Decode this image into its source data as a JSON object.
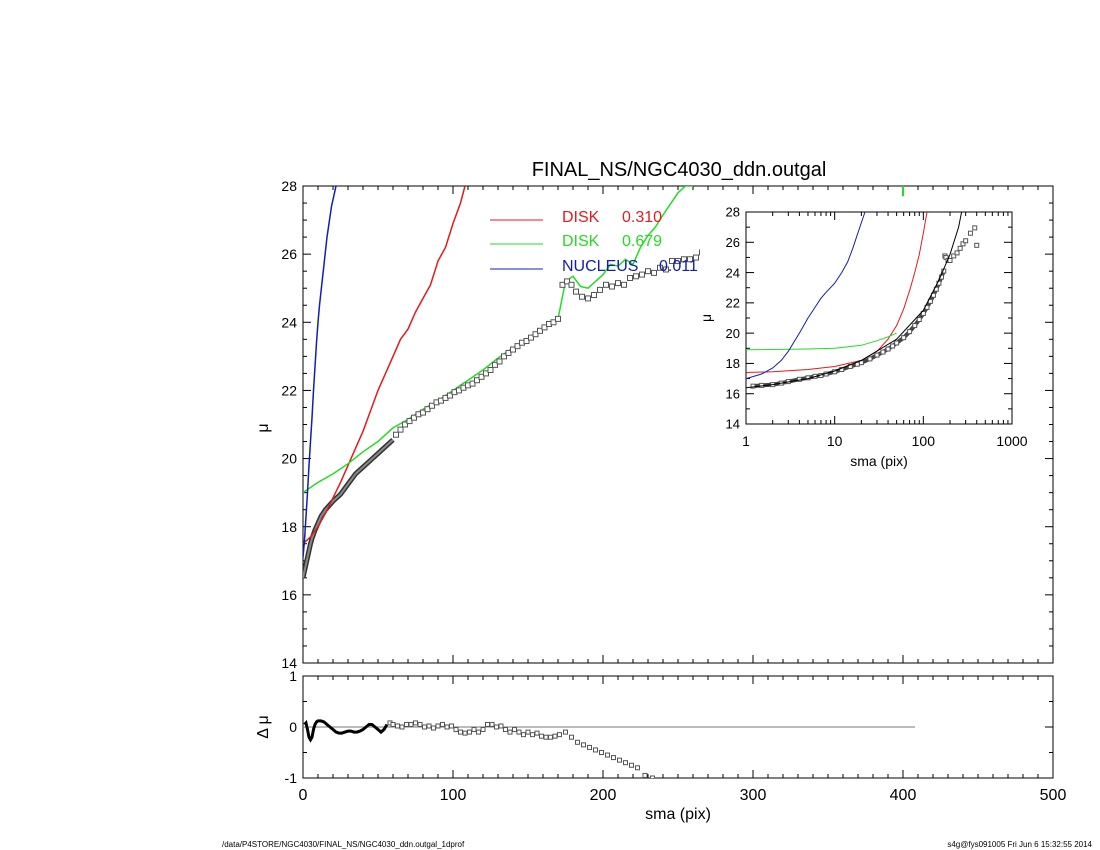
{
  "chart_data": [
    {
      "type": "scatter",
      "title": "FINAL_NS/NGC4030_ddn.outgal",
      "xlabel": "",
      "ylabel": "μ",
      "xlim": [
        0,
        500
      ],
      "ylim": [
        28,
        14
      ],
      "y_reversed": true,
      "yticks": [
        "14",
        "16",
        "18",
        "20",
        "22",
        "24",
        "26",
        "28"
      ],
      "legend": [
        {
          "name": "DISK",
          "value": "0.310",
          "color": "#e41a1c"
        },
        {
          "name": "DISK",
          "value": "0.679",
          "color": "#22dd22"
        },
        {
          "name": "NUCLEUS",
          "value": "0.011",
          "color": "#1020b0"
        }
      ],
      "observed": {
        "x": [
          62,
          65,
          68,
          71,
          74,
          77,
          80,
          83,
          86,
          89,
          92,
          95,
          98,
          101,
          104,
          107,
          110,
          113,
          116,
          119,
          122,
          125,
          128,
          131,
          134,
          137,
          140,
          143,
          146,
          149,
          152,
          155,
          158,
          161,
          164,
          167,
          170,
          173,
          176,
          179,
          182,
          186,
          190,
          194,
          198,
          202,
          206,
          210,
          214,
          218,
          222,
          226,
          230,
          234,
          238,
          242,
          246,
          250,
          254,
          258,
          262,
          266,
          270,
          274,
          278,
          282,
          286,
          290,
          295,
          300,
          305,
          310,
          315,
          320,
          325,
          330,
          335,
          340,
          345,
          350,
          355,
          360,
          365,
          370,
          375,
          380,
          385,
          390,
          400,
          408
        ],
        "y": [
          20.7,
          20.85,
          21.0,
          21.1,
          21.2,
          21.3,
          21.35,
          21.45,
          21.55,
          21.65,
          21.7,
          21.78,
          21.85,
          21.95,
          22.0,
          22.08,
          22.15,
          22.2,
          22.3,
          22.4,
          22.5,
          22.6,
          22.75,
          22.85,
          23.0,
          23.1,
          23.2,
          23.3,
          23.4,
          23.45,
          23.55,
          23.65,
          23.75,
          23.85,
          23.95,
          24.0,
          24.1,
          25.1,
          25.2,
          25.1,
          24.9,
          24.75,
          24.7,
          24.8,
          24.95,
          25.1,
          25.05,
          25.15,
          25.1,
          25.3,
          25.35,
          25.4,
          25.5,
          25.45,
          25.6,
          25.55,
          25.8,
          25.8,
          25.85,
          25.85,
          25.9,
          26.05,
          26.1,
          26.05,
          26.0,
          26.2,
          26.45,
          26.3,
          26.7,
          26.6,
          26.45,
          26.6,
          26.45,
          26.6,
          26.4,
          26.55,
          26.45,
          26.5,
          26.9,
          26.55,
          26.6,
          27.0,
          26.55,
          26.95,
          26.6,
          26.7,
          26.55,
          27.0,
          25.75,
          26.75
        ]
      },
      "model_total": {
        "x": [
          0,
          1,
          2,
          3,
          4,
          5,
          6,
          8,
          10,
          12,
          15,
          18,
          20,
          25,
          30,
          35,
          40,
          45,
          50,
          55,
          60
        ],
        "y": [
          16.5,
          16.7,
          16.9,
          17.1,
          17.3,
          17.5,
          17.65,
          17.9,
          18.1,
          18.3,
          18.5,
          18.65,
          18.75,
          18.95,
          19.25,
          19.55,
          19.75,
          19.95,
          20.15,
          20.35,
          20.55
        ]
      },
      "disk1": {
        "x": [
          0,
          5,
          10,
          15,
          20,
          25,
          30,
          35,
          40,
          45,
          50,
          55,
          60,
          65,
          70,
          75,
          80,
          85,
          90,
          95,
          100,
          105,
          108
        ],
        "y": [
          17.5,
          17.7,
          18.0,
          18.4,
          18.85,
          19.3,
          19.8,
          20.3,
          20.8,
          21.4,
          22.0,
          22.5,
          23.0,
          23.5,
          23.8,
          24.3,
          24.7,
          25.1,
          25.8,
          26.2,
          26.9,
          27.5,
          28.0
        ]
      },
      "disk2": {
        "x": [
          0,
          10,
          20,
          30,
          40,
          50,
          60,
          70,
          80,
          90,
          100,
          110,
          120,
          130,
          140,
          150,
          160,
          170,
          175,
          180,
          185,
          190,
          195,
          200,
          205,
          210,
          215,
          220,
          225,
          230,
          235,
          240,
          250,
          255,
          260
        ],
        "y": [
          19.0,
          19.3,
          19.55,
          19.85,
          20.2,
          20.5,
          20.9,
          21.15,
          21.45,
          21.7,
          22.0,
          22.3,
          22.6,
          22.95,
          23.25,
          23.5,
          23.8,
          24.1,
          25.2,
          25.35,
          25.05,
          25.0,
          25.2,
          25.4,
          25.7,
          25.65,
          25.85,
          25.7,
          26.2,
          26.55,
          26.8,
          27.15,
          27.8,
          28.0,
          28.0
        ]
      },
      "nucleus": {
        "x": [
          0,
          1,
          2,
          3,
          4,
          5,
          6,
          7,
          8,
          9,
          10,
          11,
          12,
          13,
          14,
          15,
          16,
          17,
          18,
          19,
          20,
          21,
          22
        ],
        "y": [
          17.1,
          17.6,
          18.3,
          19.0,
          19.8,
          20.5,
          21.2,
          22.0,
          22.7,
          23.4,
          24.0,
          24.5,
          24.9,
          25.3,
          25.7,
          26.1,
          26.5,
          26.8,
          27.1,
          27.4,
          27.6,
          27.8,
          28.0
        ]
      }
    },
    {
      "type": "scatter",
      "title": "",
      "xlabel": "sma (pix)",
      "ylabel": "Δ μ",
      "xlim": [
        0,
        500
      ],
      "ylim": [
        -1,
        1
      ],
      "xticks": [
        "0",
        "100",
        "200",
        "300",
        "400",
        "500"
      ],
      "yticks": [
        "1",
        "0",
        "-1"
      ],
      "zero_line_xmax": 408,
      "residuals": {
        "x": [
          1,
          2,
          3,
          4,
          5,
          6,
          7,
          8,
          9,
          10,
          12,
          14,
          16,
          18,
          20,
          22,
          24,
          26,
          28,
          30,
          32,
          34,
          36,
          38,
          40,
          42,
          44,
          46,
          48,
          50,
          52,
          54,
          56,
          58,
          60,
          63,
          66,
          69,
          72,
          75,
          78,
          81,
          84,
          87,
          90,
          93,
          96,
          99,
          102,
          105,
          108,
          111,
          114,
          117,
          120,
          123,
          126,
          129,
          132,
          135,
          138,
          141,
          144,
          147,
          150,
          153,
          156,
          159,
          162,
          165,
          168,
          171,
          175,
          179,
          183,
          187,
          191,
          195,
          199,
          203,
          207,
          211,
          215,
          219,
          223,
          228,
          233
        ],
        "y": [
          0.05,
          0.08,
          -0.05,
          -0.2,
          -0.25,
          -0.2,
          -0.05,
          0.05,
          0.1,
          0.12,
          0.12,
          0.1,
          0.05,
          0.0,
          -0.05,
          -0.1,
          -0.12,
          -0.12,
          -0.1,
          -0.08,
          -0.08,
          -0.1,
          -0.1,
          -0.08,
          -0.05,
          0.0,
          0.05,
          0.05,
          0.0,
          -0.05,
          -0.1,
          -0.05,
          0.05,
          0.08,
          0.05,
          0.02,
          0.0,
          0.05,
          0.05,
          0.08,
          0.05,
          0.0,
          0.02,
          -0.02,
          0.02,
          0.05,
          0.0,
          0.02,
          -0.05,
          -0.1,
          -0.12,
          -0.1,
          -0.05,
          -0.1,
          -0.05,
          0.05,
          0.05,
          0.0,
          0.02,
          -0.05,
          -0.1,
          -0.05,
          -0.1,
          -0.15,
          -0.1,
          -0.15,
          -0.12,
          -0.18,
          -0.2,
          -0.2,
          -0.18,
          -0.15,
          -0.1,
          -0.2,
          -0.3,
          -0.35,
          -0.4,
          -0.45,
          -0.5,
          -0.55,
          -0.6,
          -0.65,
          -0.7,
          -0.75,
          -0.8,
          -0.95,
          -1.0
        ]
      }
    },
    {
      "type": "scatter",
      "title": "",
      "xlabel": "sma (pix)",
      "ylabel": "μ",
      "xscale": "log",
      "xlim": [
        1,
        1000
      ],
      "ylim": [
        28,
        14
      ],
      "xticks": [
        "1",
        "10",
        "100",
        "1000"
      ],
      "yticks": [
        "14",
        "16",
        "18",
        "20",
        "22",
        "24",
        "26",
        "28"
      ],
      "observed": {
        "x": [
          1.2,
          1.5,
          2,
          2.5,
          3,
          4,
          5,
          6,
          7,
          8,
          10,
          12,
          15,
          18,
          20,
          25,
          30,
          35,
          40,
          45,
          50,
          60,
          70,
          80,
          90,
          100,
          110,
          120,
          130,
          140,
          150,
          160,
          170,
          175,
          180,
          190,
          200,
          220,
          240,
          260,
          280,
          300,
          340,
          380,
          400
        ],
        "y": [
          16.5,
          16.55,
          16.6,
          16.7,
          16.8,
          16.95,
          17.05,
          17.15,
          17.2,
          17.3,
          17.45,
          17.6,
          17.8,
          17.95,
          18.05,
          18.3,
          18.55,
          18.75,
          18.95,
          19.15,
          19.35,
          19.7,
          20.1,
          20.5,
          20.9,
          21.3,
          21.7,
          22.1,
          22.5,
          22.9,
          23.3,
          23.7,
          24.1,
          25.1,
          25.0,
          24.8,
          24.8,
          25.1,
          25.3,
          25.6,
          25.9,
          26.1,
          26.6,
          26.95,
          25.8
        ]
      },
      "model_total": {
        "x": [
          1,
          2,
          5,
          10,
          20,
          50,
          100,
          150,
          200,
          250,
          270
        ],
        "y": [
          16.4,
          16.6,
          17.0,
          17.5,
          18.2,
          19.6,
          21.5,
          23.5,
          25.2,
          27.0,
          28.0
        ]
      },
      "disk1": {
        "x": [
          1,
          2,
          5,
          10,
          20,
          30,
          40,
          50,
          60,
          70,
          80,
          90,
          100,
          110
        ],
        "y": [
          17.4,
          17.45,
          17.6,
          17.8,
          18.2,
          18.8,
          19.6,
          20.5,
          21.6,
          22.8,
          24.0,
          25.2,
          26.6,
          28.0
        ]
      },
      "disk2": {
        "x": [
          1,
          5,
          10,
          20,
          30,
          40,
          50
        ],
        "y": [
          18.9,
          18.95,
          19.0,
          19.2,
          19.5,
          19.75,
          20.0
        ]
      },
      "nucleus": {
        "x": [
          1,
          1.5,
          2,
          2.5,
          3,
          4,
          5,
          6,
          7,
          8,
          10,
          12,
          14,
          16,
          18,
          20,
          22
        ],
        "y": [
          17.0,
          17.3,
          17.7,
          18.2,
          18.8,
          20.0,
          21.0,
          21.7,
          22.3,
          22.7,
          23.3,
          24.0,
          24.7,
          25.6,
          26.5,
          27.3,
          28.0
        ]
      }
    }
  ],
  "footer": {
    "path": "/data/P4STORE/NGC4030/FINAL_NS/NGC4030_ddn.outgal_1dprof",
    "stamp": "s4g@fys091005  Fri Jun  6 15:32:55 2014"
  },
  "colors": {
    "observed": "#555555",
    "total": "#000000",
    "disk1": "#e41a1c",
    "disk2": "#22dd22",
    "nucleus": "#1020b0"
  }
}
